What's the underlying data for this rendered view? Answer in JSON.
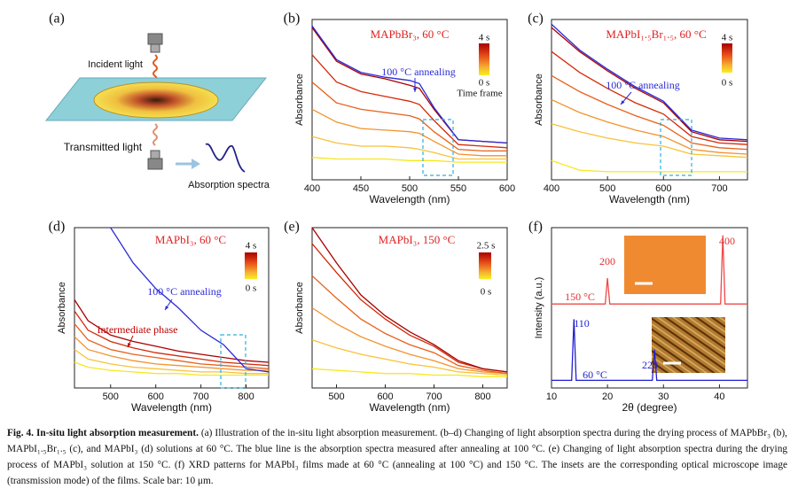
{
  "diagram": {
    "panel": "(a)",
    "labels": [
      "Incident light",
      "Transmitted light",
      "Absorption spectra"
    ]
  },
  "chart_data": [
    {
      "type": "line",
      "panel": "(b)",
      "title": "MAPbBr₃, 60 °C",
      "x_label": "Wavelength (nm)",
      "y_label": "Absorbance",
      "xlim": [
        400,
        600
      ],
      "ylim": [
        0,
        1
      ],
      "xticks": [
        400,
        450,
        500,
        550,
        600
      ],
      "x": [
        400,
        425,
        450,
        475,
        500,
        510,
        525,
        550,
        575,
        600
      ],
      "series": [
        {
          "color": "#f6e81e",
          "values": [
            0.14,
            0.13,
            0.13,
            0.13,
            0.12,
            0.12,
            0.12,
            0.11,
            0.11,
            0.11
          ]
        },
        {
          "color": "#f8c23a",
          "values": [
            0.27,
            0.23,
            0.21,
            0.21,
            0.2,
            0.19,
            0.17,
            0.13,
            0.13,
            0.13
          ]
        },
        {
          "color": "#f2932e",
          "values": [
            0.44,
            0.36,
            0.32,
            0.31,
            0.3,
            0.29,
            0.24,
            0.16,
            0.15,
            0.15
          ]
        },
        {
          "color": "#e8601a",
          "values": [
            0.61,
            0.48,
            0.44,
            0.42,
            0.4,
            0.38,
            0.3,
            0.19,
            0.18,
            0.18
          ]
        },
        {
          "color": "#d42a08",
          "values": [
            0.78,
            0.61,
            0.55,
            0.52,
            0.49,
            0.47,
            0.37,
            0.22,
            0.21,
            0.2
          ]
        },
        {
          "color": "#a80000",
          "values": [
            0.95,
            0.74,
            0.66,
            0.63,
            0.59,
            0.57,
            0.44,
            0.25,
            0.24,
            0.23
          ]
        },
        {
          "color": "#2a2ad8",
          "values": [
            0.96,
            0.75,
            0.67,
            0.64,
            0.62,
            0.6,
            0.45,
            0.25,
            0.24,
            0.23
          ]
        }
      ],
      "colorbar": {
        "labels": [
          "4 s",
          "0 s"
        ],
        "title": "Time frame"
      },
      "annotations": [
        "100 °C annealing"
      ]
    },
    {
      "type": "line",
      "panel": "(c)",
      "title": "MAPbI₁.₅Br₁.₅, 60 °C",
      "x_label": "Wavelength (nm)",
      "y_label": "Absorbance",
      "xlim": [
        400,
        750
      ],
      "ylim": [
        0,
        1
      ],
      "xticks": [
        400,
        500,
        600,
        700
      ],
      "x": [
        400,
        450,
        500,
        550,
        600,
        650,
        700,
        750
      ],
      "series": [
        {
          "color": "#f6e81e",
          "values": [
            0.12,
            0.06,
            0.05,
            0.05,
            0.05,
            0.05,
            0.05,
            0.05
          ]
        },
        {
          "color": "#f8c23a",
          "values": [
            0.35,
            0.3,
            0.26,
            0.23,
            0.21,
            0.16,
            0.15,
            0.14
          ]
        },
        {
          "color": "#f2932e",
          "values": [
            0.5,
            0.42,
            0.36,
            0.31,
            0.27,
            0.19,
            0.17,
            0.16
          ]
        },
        {
          "color": "#e8601a",
          "values": [
            0.65,
            0.55,
            0.47,
            0.4,
            0.34,
            0.23,
            0.2,
            0.19
          ]
        },
        {
          "color": "#d42a08",
          "values": [
            0.8,
            0.67,
            0.57,
            0.48,
            0.41,
            0.27,
            0.23,
            0.22
          ]
        },
        {
          "color": "#a80000",
          "values": [
            0.95,
            0.8,
            0.68,
            0.57,
            0.48,
            0.3,
            0.25,
            0.24
          ]
        },
        {
          "color": "#2a2ad8",
          "values": [
            0.97,
            0.81,
            0.69,
            0.58,
            0.49,
            0.31,
            0.26,
            0.25
          ]
        }
      ],
      "colorbar": {
        "labels": [
          "4 s",
          "0 s"
        ]
      },
      "annotations": [
        "100 °C annealing"
      ]
    },
    {
      "type": "line",
      "panel": "(d)",
      "title": "MAPbI₃, 60 °C",
      "x_label": "Wavelength (nm)",
      "y_label": "Absorbance",
      "xlim": [
        420,
        850
      ],
      "ylim": [
        0,
        1
      ],
      "xticks": [
        500,
        600,
        700,
        800
      ],
      "x": [
        420,
        450,
        500,
        550,
        600,
        650,
        700,
        750,
        800,
        850
      ],
      "series": [
        {
          "color": "#f6e81e",
          "values": [
            0.16,
            0.13,
            0.11,
            0.1,
            0.09,
            0.09,
            0.08,
            0.08,
            0.08,
            0.08
          ]
        },
        {
          "color": "#f8c23a",
          "values": [
            0.24,
            0.18,
            0.15,
            0.13,
            0.12,
            0.11,
            0.1,
            0.1,
            0.09,
            0.09
          ]
        },
        {
          "color": "#f2932e",
          "values": [
            0.32,
            0.24,
            0.2,
            0.17,
            0.15,
            0.14,
            0.13,
            0.12,
            0.11,
            0.11
          ]
        },
        {
          "color": "#e8601a",
          "values": [
            0.4,
            0.3,
            0.24,
            0.21,
            0.19,
            0.17,
            0.15,
            0.14,
            0.13,
            0.12
          ]
        },
        {
          "color": "#d42a08",
          "values": [
            0.48,
            0.36,
            0.29,
            0.25,
            0.22,
            0.2,
            0.18,
            0.16,
            0.15,
            0.14
          ]
        },
        {
          "color": "#a80000",
          "values": [
            0.55,
            0.42,
            0.33,
            0.29,
            0.26,
            0.23,
            0.21,
            0.19,
            0.17,
            0.16
          ]
        },
        {
          "color": "#2a2ad8",
          "values": [
            null,
            null,
            1.0,
            0.78,
            0.62,
            0.5,
            0.36,
            0.27,
            0.12,
            0.1
          ]
        }
      ],
      "colorbar": {
        "labels": [
          "4 s",
          "0 s"
        ]
      },
      "annotations": [
        "100 °C annealing",
        "Intermediate phase"
      ]
    },
    {
      "type": "line",
      "panel": "(e)",
      "title": "MAPbI₃, 150 °C",
      "x_label": "Wavelength (nm)",
      "y_label": "Absorbance",
      "xlim": [
        450,
        850
      ],
      "ylim": [
        0,
        1
      ],
      "xticks": [
        500,
        600,
        700,
        800
      ],
      "x": [
        450,
        500,
        550,
        600,
        650,
        700,
        750,
        800,
        850
      ],
      "series": [
        {
          "color": "#f6e81e",
          "values": [
            0.12,
            0.11,
            0.1,
            0.09,
            0.09,
            0.08,
            0.08,
            0.07,
            0.07
          ]
        },
        {
          "color": "#f8c23a",
          "values": [
            0.3,
            0.25,
            0.21,
            0.18,
            0.15,
            0.13,
            0.1,
            0.09,
            0.08
          ]
        },
        {
          "color": "#f2932e",
          "values": [
            0.5,
            0.4,
            0.32,
            0.26,
            0.21,
            0.17,
            0.12,
            0.1,
            0.09
          ]
        },
        {
          "color": "#e8601a",
          "values": [
            0.7,
            0.56,
            0.43,
            0.34,
            0.27,
            0.22,
            0.14,
            0.11,
            0.09
          ]
        },
        {
          "color": "#d42a08",
          "values": [
            0.9,
            0.72,
            0.55,
            0.43,
            0.33,
            0.26,
            0.16,
            0.12,
            0.1
          ]
        },
        {
          "color": "#a80000",
          "values": [
            1.0,
            0.78,
            0.58,
            0.45,
            0.35,
            0.27,
            0.17,
            0.12,
            0.1
          ]
        }
      ],
      "colorbar": {
        "labels": [
          "2.5 s",
          "0 s"
        ]
      },
      "annotations": []
    },
    {
      "type": "line",
      "panel": "(f)",
      "x_label": "2θ (degree)",
      "y_label": "Intensity (a.u.)",
      "xlim": [
        10,
        45
      ],
      "ylim": [
        0,
        1.05
      ],
      "xticks": [
        10,
        20,
        30,
        40
      ],
      "series": [
        {
          "color": "#f04848",
          "x": [
            10,
            19.6,
            20,
            20.4,
            40.2,
            40.6,
            41,
            45
          ],
          "values": [
            0.55,
            0.55,
            0.72,
            0.55,
            0.55,
            1.0,
            0.55,
            0.55
          ]
        },
        {
          "color": "#2020d0",
          "x": [
            10,
            13.6,
            14,
            14.4,
            28,
            28.4,
            28.8,
            45
          ],
          "values": [
            0.05,
            0.05,
            0.45,
            0.05,
            0.05,
            0.25,
            0.05,
            0.05
          ]
        }
      ],
      "annotations": [
        "400",
        "200",
        "110",
        "220",
        "150 °C",
        "60 °C"
      ]
    }
  ],
  "caption": {
    "label": "Fig. 4. In-situ light absorption measurement.",
    "text": "(a) Illustration of the in-situ light absorption measurement. (b–d) Changing of light absorption spectra during the drying process of MAPbBr₃ (b), MAPbI₁.₅Br₁.₅ (c), and MAPbI₃ (d) solutions at 60 °C. The blue line is the absorption spectra measured after annealing at 100 °C. (e) Changing of light absorption spectra during the drying process of MAPbI₃ solution at 150 °C. (f) XRD patterns for MAPbI₃ films made at 60 °C (annealing at 100 °C) and 150 °C. The insets are the corresponding optical microscope image (transmission mode) of the films. Scale bar: 10 μm."
  }
}
